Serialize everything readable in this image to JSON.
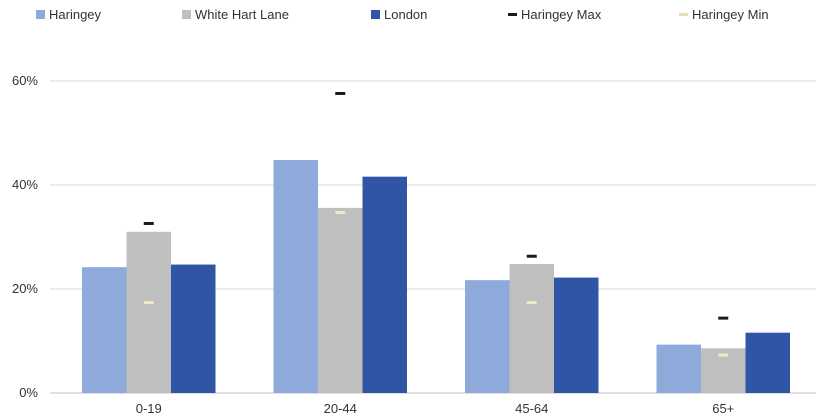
{
  "chart_data": {
    "type": "bar",
    "title": "",
    "xlabel": "",
    "ylabel": "",
    "ylim": [
      0,
      60
    ],
    "y_ticks": [
      "0%",
      "20%",
      "40%",
      "60%"
    ],
    "y_tick_values": [
      0,
      20,
      40,
      60
    ],
    "grid": true,
    "legend_position": "top",
    "categories": [
      "0-19",
      "20-44",
      "45-64",
      "65+"
    ],
    "series": [
      {
        "name": "Haringey",
        "color": "#8EAADB",
        "values": [
          24.2,
          44.8,
          21.7,
          9.3
        ]
      },
      {
        "name": "White Hart Lane",
        "color": "#BFBFBF",
        "values": [
          31.0,
          35.6,
          24.8,
          8.6
        ]
      },
      {
        "name": "London",
        "color": "#2F55A4",
        "values": [
          24.7,
          41.6,
          22.2,
          11.6
        ]
      }
    ],
    "markers": [
      {
        "name": "Haringey Max",
        "color": "#1A1A1A",
        "values": [
          32.6,
          57.6,
          26.3,
          14.4
        ]
      },
      {
        "name": "Haringey Min",
        "color": "#F2E8C9",
        "values": [
          17.4,
          34.7,
          17.4,
          7.3
        ]
      }
    ]
  }
}
